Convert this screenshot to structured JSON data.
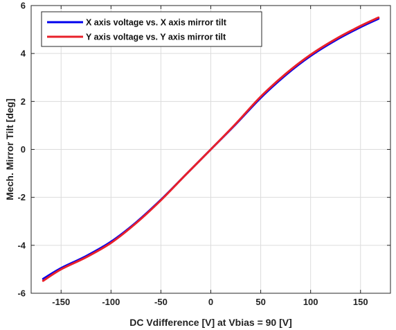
{
  "chart_data": {
    "type": "line",
    "xlabel": "DC Vdifference [V] at Vbias = 90 [V]",
    "ylabel": "Mech. Mirror Tilt [deg]",
    "xlim": [
      -180,
      180
    ],
    "ylim": [
      -6,
      6
    ],
    "x_ticks": [
      -150,
      -100,
      -50,
      0,
      50,
      100,
      150
    ],
    "y_ticks": [
      -6,
      -4,
      -2,
      0,
      2,
      4,
      6
    ],
    "grid": true,
    "legend_position": "top-left",
    "series": [
      {
        "name": "X axis voltage vs. X axis mirror tilt",
        "color": "#0000ee",
        "x": [
          -168,
          -150,
          -125,
          -100,
          -75,
          -50,
          -25,
          0,
          25,
          50,
          75,
          100,
          125,
          150,
          168
        ],
        "y": [
          -5.4,
          -4.95,
          -4.45,
          -3.85,
          -3.05,
          -2.1,
          -1.05,
          0,
          1.05,
          2.15,
          3.1,
          3.9,
          4.55,
          5.1,
          5.45
        ]
      },
      {
        "name": "Y axis voltage vs. Y axis mirror tilt",
        "color": "#e8202a",
        "x": [
          -168,
          -150,
          -125,
          -100,
          -75,
          -50,
          -25,
          0,
          25,
          50,
          75,
          100,
          125,
          150,
          168
        ],
        "y": [
          -5.48,
          -5.0,
          -4.5,
          -3.9,
          -3.08,
          -2.12,
          -1.05,
          0,
          1.07,
          2.2,
          3.15,
          3.95,
          4.6,
          5.15,
          5.5
        ]
      }
    ]
  }
}
